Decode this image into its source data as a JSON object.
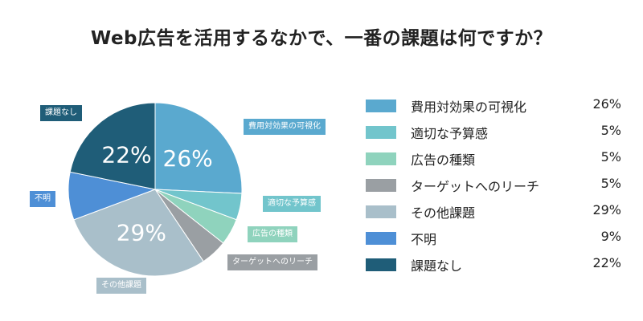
{
  "chart_data": {
    "type": "pie",
    "title": "Web広告を活用するなかで、一番の課題は何ですか？",
    "unit": "%",
    "slices": [
      {
        "label": "費用対効果の可視化",
        "value": 26,
        "value_label": "26%",
        "color": "#5aa9cf"
      },
      {
        "label": "適切な予算感",
        "value": 5,
        "value_label": "5%",
        "color": "#72c5cc"
      },
      {
        "label": "広告の種類",
        "value": 5,
        "value_label": "5%",
        "color": "#8fd3bd"
      },
      {
        "label": "ターゲットへのリーチ",
        "value": 5,
        "value_label": "5%",
        "color": "#9a9fa3"
      },
      {
        "label": "その他課題",
        "value": 29,
        "value_label": "29%",
        "color": "#a9bfca"
      },
      {
        "label": "不明",
        "value": 9,
        "value_label": "9%",
        "color": "#4e8fd6"
      },
      {
        "label": "課題なし",
        "value": 22,
        "value_label": "22%",
        "color": "#1f5d78"
      }
    ],
    "legend_position": "right"
  }
}
